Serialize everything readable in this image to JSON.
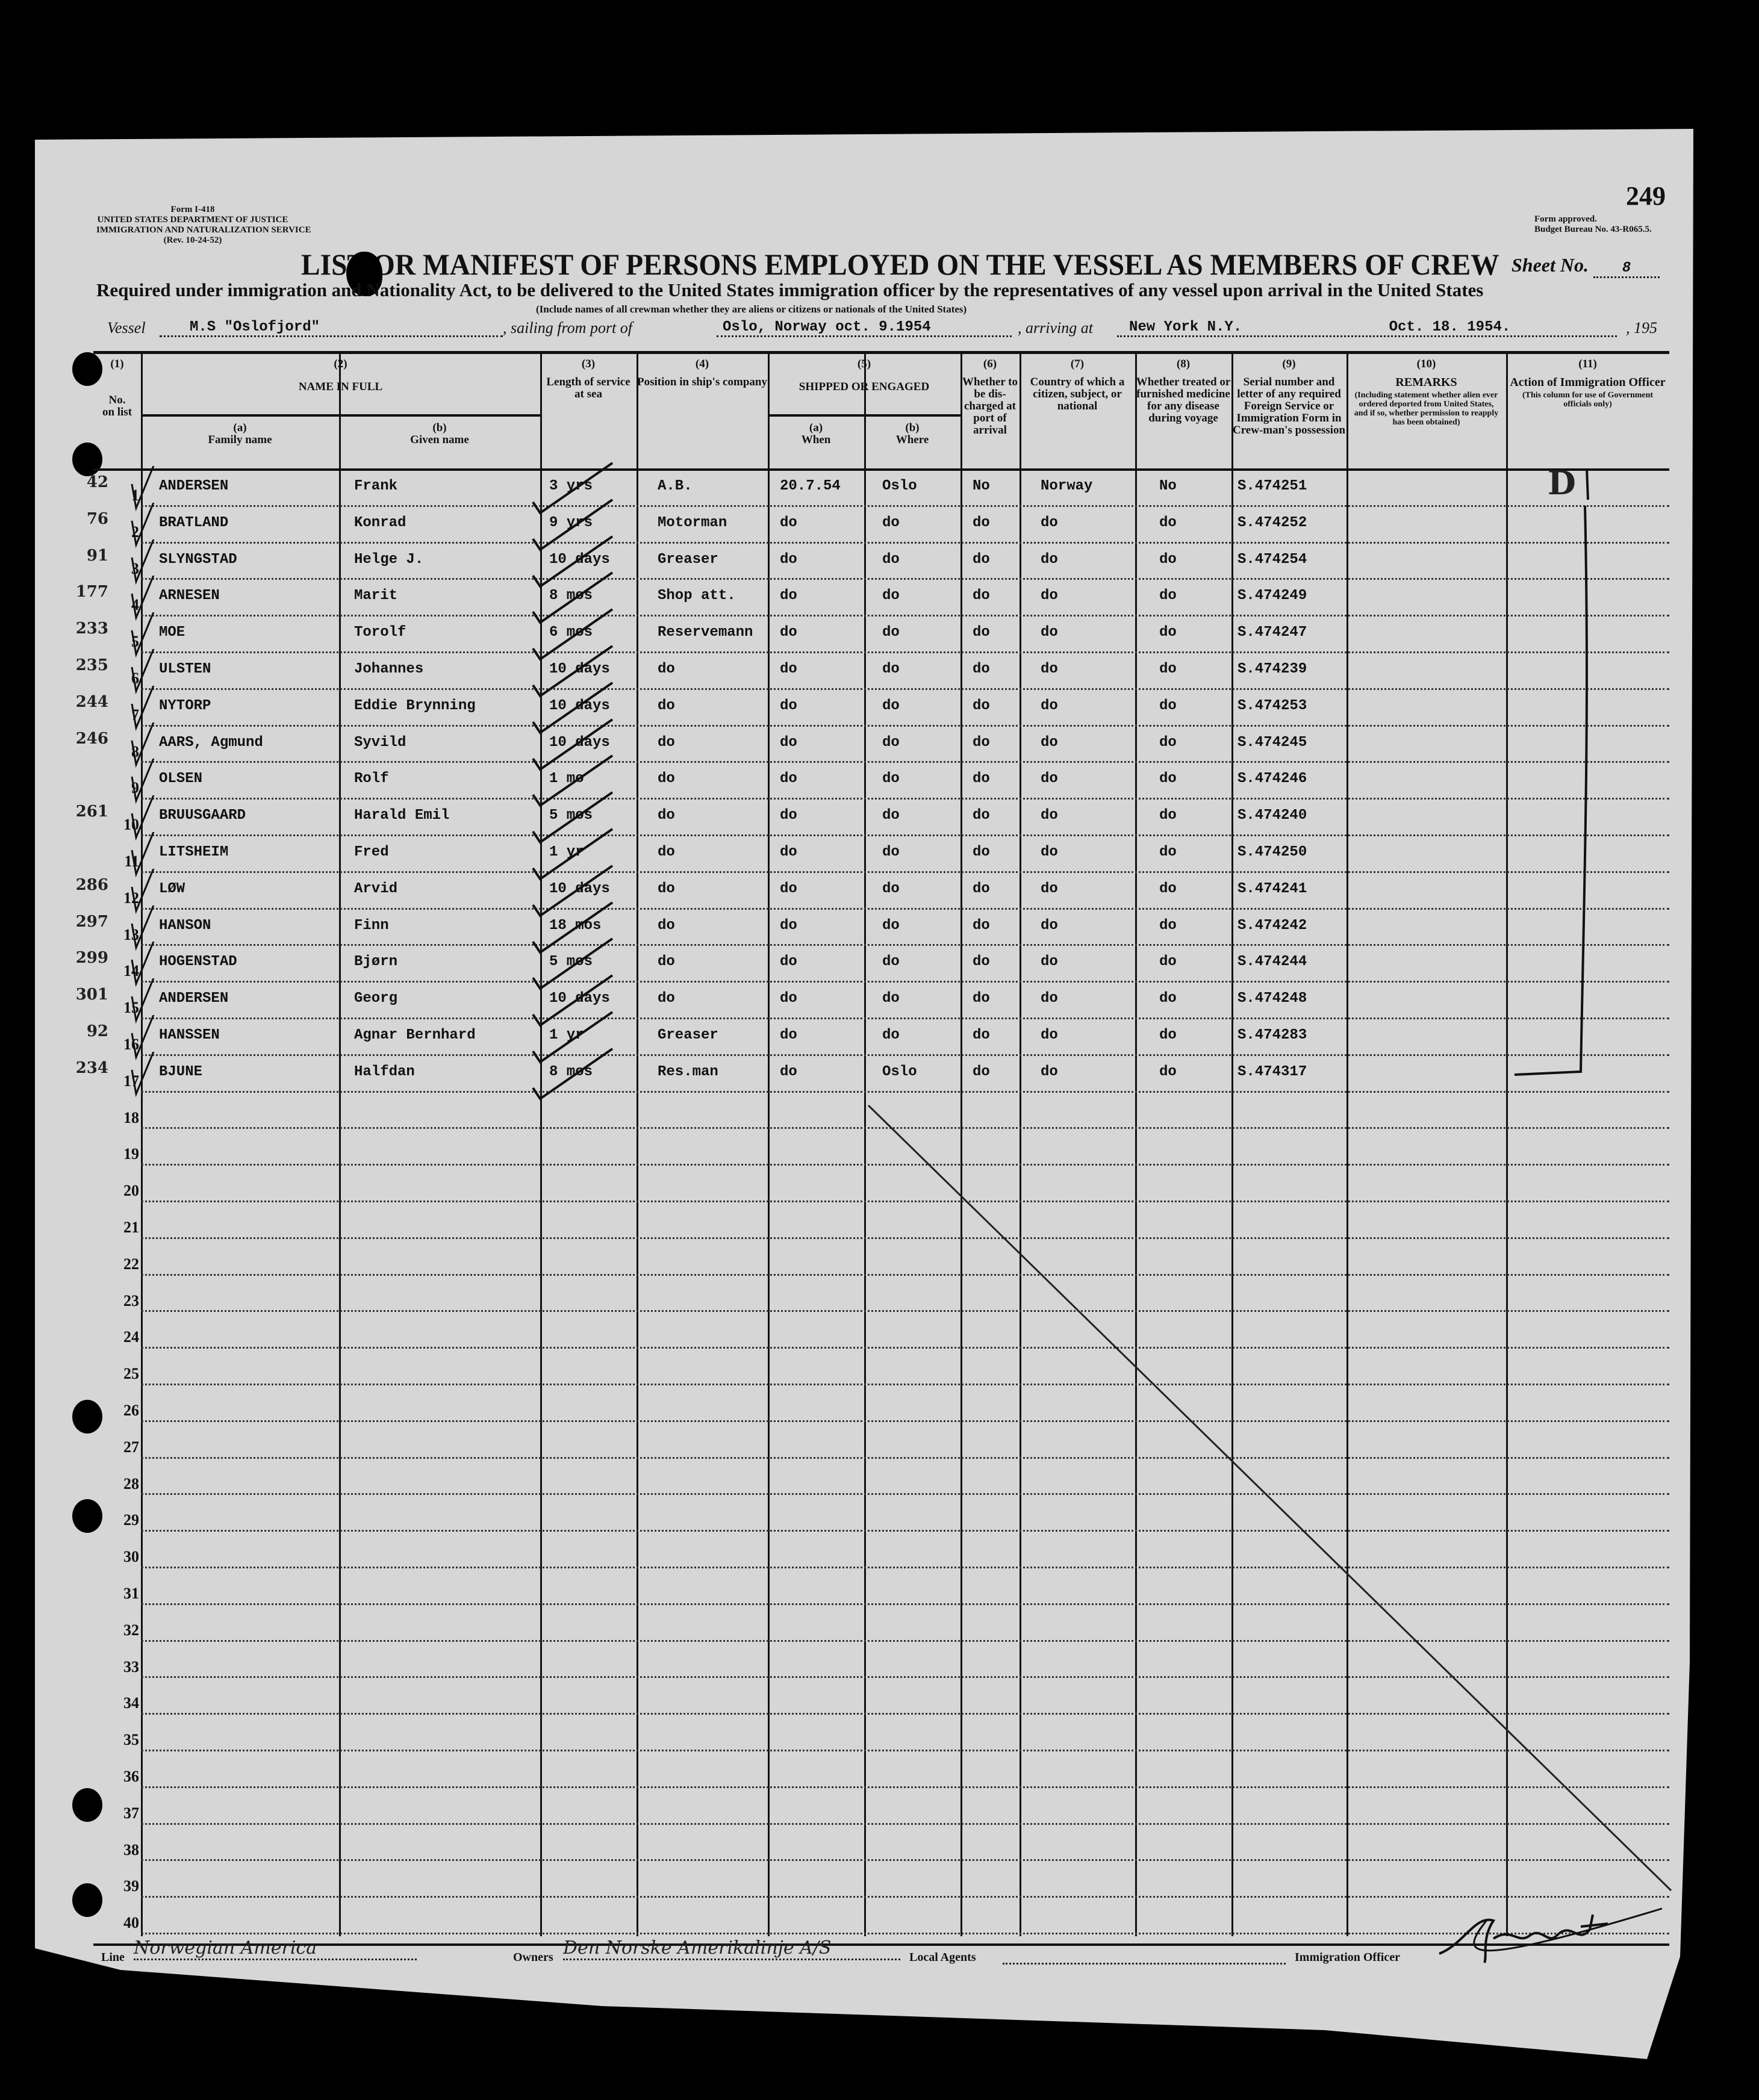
{
  "page_number": "249",
  "form": {
    "form_no": "Form I-418",
    "department": "UNITED STATES DEPARTMENT OF JUSTICE",
    "service": "IMMIGRATION AND NATURALIZATION SERVICE",
    "revision": "(Rev. 10-24-52)",
    "approval": "Form approved.",
    "budget": "Budget Bureau No. 43-R065.5."
  },
  "title": "LIST OR MANIFEST OF PERSONS EMPLOYED ON THE VESSEL AS MEMBERS OF CREW",
  "sheet": {
    "label": "Sheet No.",
    "value": "8"
  },
  "required_line": "Required under immigration and Nationality Act, to be delivered to the United States immigration officer by the representatives of any vessel upon arrival in the United States",
  "include_line": "(Include names of all crewman whether they are aliens or citizens or nationals of the United States)",
  "voyage": {
    "vessel_label": "Vessel",
    "vessel": "M.S \"Oslofjord\"",
    "sailing_label": ", sailing from port of",
    "sailing": "Oslo, Norway oct. 9.1954",
    "arriving_label": ", arriving at",
    "arriving": "New York N.Y.",
    "date": "Oct. 18. 1954.",
    "year_label": ", 195"
  },
  "columns": [
    {
      "num": "(1)",
      "label": "No. on list"
    },
    {
      "num": "(2)",
      "label": "NAME IN FULL",
      "sub": [
        {
          "num": "(a)",
          "label": "Family name"
        },
        {
          "num": "(b)",
          "label": "Given name"
        }
      ]
    },
    {
      "num": "(3)",
      "label": "Length of service at sea"
    },
    {
      "num": "(4)",
      "label": "Position in ship's company"
    },
    {
      "num": "(5)",
      "label": "SHIPPED OR ENGAGED",
      "sub": [
        {
          "num": "(a)",
          "label": "When"
        },
        {
          "num": "(b)",
          "label": "Where"
        }
      ]
    },
    {
      "num": "(6)",
      "label": "Whether to be dis-charged at port of arrival"
    },
    {
      "num": "(7)",
      "label": "Country of which a citizen, subject, or national"
    },
    {
      "num": "(8)",
      "label": "Whether treated or furnished medicine for any disease during voyage"
    },
    {
      "num": "(9)",
      "label": "Serial number and letter of any required Foreign Service or Immigration Form in Crew-man's possession"
    },
    {
      "num": "(10)",
      "label": "REMARKS",
      "note": "(Including statement whether alien ever ordered deported from United States, and if so, whether permission to reapply has been obtained)"
    },
    {
      "num": "(11)",
      "label": "Action of Immigration Officer",
      "note": "(This column for use of Government officials only)"
    }
  ],
  "row_numbers": [
    "1",
    "2",
    "3",
    "4",
    "5",
    "6",
    "7",
    "8",
    "9",
    "10",
    "11",
    "12",
    "13",
    "14",
    "15",
    "16",
    "17",
    "18",
    "19",
    "20",
    "21",
    "22",
    "23",
    "24",
    "25",
    "26",
    "27",
    "28",
    "29",
    "30",
    "31",
    "32",
    "33",
    "34",
    "35",
    "36",
    "37",
    "38",
    "39",
    "40"
  ],
  "crew": [
    {
      "margin": "42",
      "family": "ANDERSEN",
      "given": "Frank",
      "length": "3 yrs",
      "position": "A.B.",
      "when": "20.7.54",
      "where": "Oslo",
      "discharged": "No",
      "country": "Norway",
      "treated": "No",
      "serial": "S.474251"
    },
    {
      "margin": "76",
      "family": "BRATLAND",
      "given": "Konrad",
      "length": "9 yrs",
      "position": "Motorman",
      "when": "do",
      "where": "do",
      "discharged": "do",
      "country": "do",
      "treated": "do",
      "serial": "S.474252"
    },
    {
      "margin": "91",
      "family": "SLYNGSTAD",
      "given": "Helge J.",
      "length": "10 days",
      "position": "Greaser",
      "when": "do",
      "where": "do",
      "discharged": "do",
      "country": "do",
      "treated": "do",
      "serial": "S.474254"
    },
    {
      "margin": "177",
      "family": "ARNESEN",
      "given": "Marit",
      "length": "8 mos",
      "position": "Shop att.",
      "when": "do",
      "where": "do",
      "discharged": "do",
      "country": "do",
      "treated": "do",
      "serial": "S.474249"
    },
    {
      "margin": "233",
      "family": "MOE",
      "given": "Torolf",
      "length": "6 mos",
      "position": "Reservemann",
      "when": "do",
      "where": "do",
      "discharged": "do",
      "country": "do",
      "treated": "do",
      "serial": "S.474247"
    },
    {
      "margin": "235",
      "family": "ULSTEN",
      "given": "Johannes",
      "length": "10 days",
      "position": "do",
      "when": "do",
      "where": "do",
      "discharged": "do",
      "country": "do",
      "treated": "do",
      "serial": "S.474239"
    },
    {
      "margin": "244",
      "family": "NYTORP",
      "given": "Eddie Brynning",
      "length": "10 days",
      "position": "do",
      "when": "do",
      "where": "do",
      "discharged": "do",
      "country": "do",
      "treated": "do",
      "serial": "S.474253"
    },
    {
      "margin": "246",
      "family": "AARS, Agmund",
      "given": "Syvild",
      "length": "10 days",
      "position": "do",
      "when": "do",
      "where": "do",
      "discharged": "do",
      "country": "do",
      "treated": "do",
      "serial": "S.474245"
    },
    {
      "margin": "",
      "family": "OLSEN",
      "given": "Rolf",
      "length": "1 mo",
      "position": "do",
      "when": "do",
      "where": "do",
      "discharged": "do",
      "country": "do",
      "treated": "do",
      "serial": "S.474246"
    },
    {
      "margin": "261",
      "family": "BRUUSGAARD",
      "given": "Harald Emil",
      "length": "5 mos",
      "position": "do",
      "when": "do",
      "where": "do",
      "discharged": "do",
      "country": "do",
      "treated": "do",
      "serial": "S.474240"
    },
    {
      "margin": "",
      "family": "LITSHEIM",
      "given": "Fred",
      "length": "1 yr",
      "position": "do",
      "when": "do",
      "where": "do",
      "discharged": "do",
      "country": "do",
      "treated": "do",
      "serial": "S.474250"
    },
    {
      "margin": "286",
      "family": "LØW",
      "given": "Arvid",
      "length": "10 days",
      "position": "do",
      "when": "do",
      "where": "do",
      "discharged": "do",
      "country": "do",
      "treated": "do",
      "serial": "S.474241"
    },
    {
      "margin": "297",
      "family": "HANSON",
      "given": "Finn",
      "length": "18 mos",
      "position": "do",
      "when": "do",
      "where": "do",
      "discharged": "do",
      "country": "do",
      "treated": "do",
      "serial": "S.474242"
    },
    {
      "margin": "299",
      "family": "HOGENSTAD",
      "given": "Bjørn",
      "length": "5 mos",
      "position": "do",
      "when": "do",
      "where": "do",
      "discharged": "do",
      "country": "do",
      "treated": "do",
      "serial": "S.474244"
    },
    {
      "margin": "301",
      "family": "ANDERSEN",
      "given": "Georg",
      "length": "10 days",
      "position": "do",
      "when": "do",
      "where": "do",
      "discharged": "do",
      "country": "do",
      "treated": "do",
      "serial": "S.474248"
    },
    {
      "margin": "92",
      "family": "HANSSEN",
      "given": "Agnar Bernhard",
      "length": "1 yr",
      "position": "Greaser",
      "when": "do",
      "where": "do",
      "discharged": "do",
      "country": "do",
      "treated": "do",
      "serial": "S.474283"
    },
    {
      "margin": "234",
      "family": "BJUNE",
      "given": "Halfdan",
      "length": "8 mos",
      "position": "Res.man",
      "when": "do",
      "where": "Oslo",
      "discharged": "do",
      "country": "do",
      "treated": "do",
      "serial": "S.474317"
    }
  ],
  "action_mark": "D",
  "footer": {
    "line_label": "Line",
    "line_value": "Norwegian America",
    "owners_label": "Owners",
    "owners_value": "Den Norske Amerikalinje A/S",
    "agents_label": "Local Agents",
    "officer_label": "Immigration Officer",
    "officer_signature": "signature"
  },
  "colors": {
    "paper": "#d6d6d6",
    "ink": "#111111",
    "background": "#000000"
  }
}
